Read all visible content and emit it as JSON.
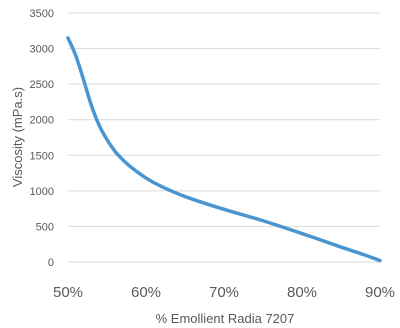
{
  "chart_data": {
    "type": "line",
    "xlabel": "% Emollient Radia 7207",
    "ylabel": "Viscosity (mPa.s)",
    "xlim": [
      50,
      90
    ],
    "ylim": [
      0,
      3500
    ],
    "x_ticks": [
      50,
      60,
      70,
      80,
      90
    ],
    "x_tick_labels": [
      "50%",
      "60%",
      "70%",
      "80%",
      "90%"
    ],
    "y_ticks": [
      0,
      500,
      1000,
      1500,
      2000,
      2500,
      3000,
      3500
    ],
    "y_tick_labels": [
      "0",
      "500",
      "1000",
      "1500",
      "2000",
      "2500",
      "3000",
      "3500"
    ],
    "grid": true,
    "legend": "none",
    "series": [
      {
        "color": "#4a95cf",
        "x": [
          50,
          51,
          52,
          53,
          54,
          55,
          56,
          57,
          58,
          60,
          62,
          65,
          70,
          75,
          80,
          85,
          88,
          90
        ],
        "y": [
          3150,
          2900,
          2560,
          2200,
          1920,
          1720,
          1560,
          1440,
          1340,
          1180,
          1060,
          920,
          740,
          580,
          400,
          210,
          100,
          20
        ]
      }
    ]
  }
}
